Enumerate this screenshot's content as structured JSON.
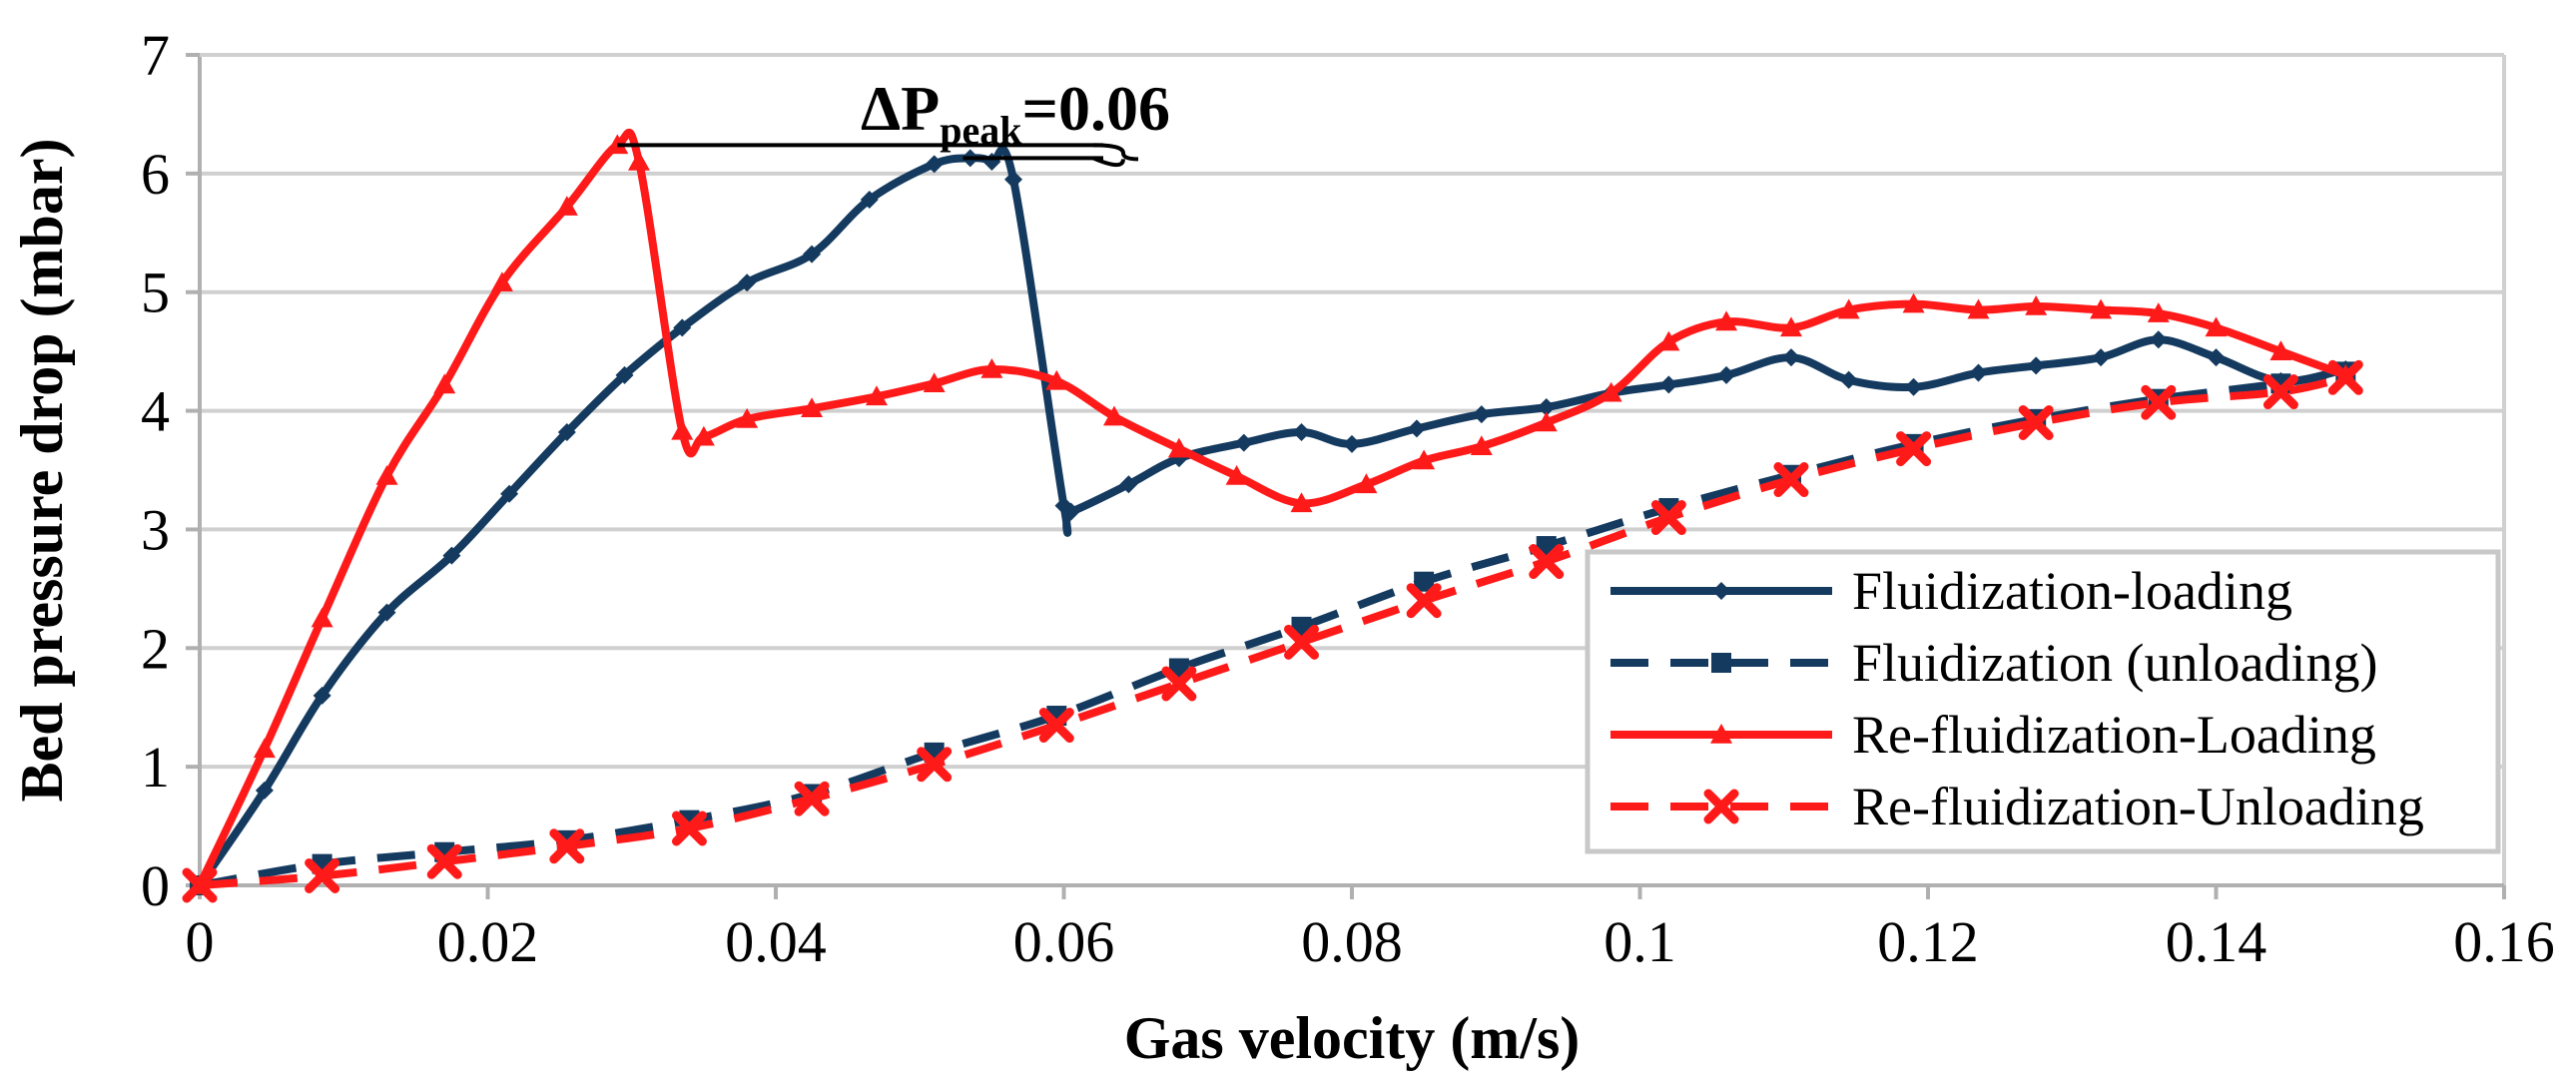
{
  "chart_data": {
    "type": "line",
    "title": "",
    "xlabel": "Gas velocity (m/s)",
    "ylabel": "Bed pressure drop (mbar)",
    "xlim": [
      0,
      0.16
    ],
    "ylim": [
      0,
      7
    ],
    "xticks": [
      "0",
      "0.02",
      "0.04",
      "0.06",
      "0.08",
      "0.1",
      "0.12",
      "0.14",
      "0.16"
    ],
    "yticks": [
      "0",
      "1",
      "2",
      "3",
      "4",
      "5",
      "6",
      "7"
    ],
    "grid": "horizontal",
    "legend_position": "bottom-right",
    "annotation": {
      "main": "ΔP",
      "sub": "peak",
      "value": "=0.06"
    },
    "colors": {
      "navy": "#143a5f",
      "red": "#ff1a1a",
      "grid": "#d0d0d0",
      "axis": "#b0b0b0"
    },
    "series": [
      {
        "name": "Fluidization-loading",
        "color": "#143a5f",
        "dash": "solid",
        "marker": "diamond",
        "x": [
          0,
          0.0045,
          0.0085,
          0.013,
          0.0175,
          0.0215,
          0.0255,
          0.0295,
          0.0335,
          0.038,
          0.0425,
          0.0465,
          0.051,
          0.0535,
          0.055,
          0.0565,
          0.06,
          0.0605,
          0.0645,
          0.068,
          0.0725,
          0.0765,
          0.08,
          0.0845,
          0.089,
          0.0935,
          0.098,
          0.102,
          0.106,
          0.1105,
          0.1145,
          0.119,
          0.1235,
          0.1275,
          0.132,
          0.136,
          0.14,
          0.1445,
          0.149
        ],
        "y": [
          0,
          0.8,
          1.6,
          2.3,
          2.78,
          3.3,
          3.82,
          4.3,
          4.7,
          5.08,
          5.32,
          5.78,
          6.08,
          6.13,
          6.1,
          5.95,
          3.2,
          3.15,
          3.38,
          3.6,
          3.73,
          3.82,
          3.72,
          3.85,
          3.97,
          4.03,
          4.15,
          4.22,
          4.3,
          4.45,
          4.26,
          4.2,
          4.32,
          4.38,
          4.45,
          4.6,
          4.45,
          4.25,
          4.35
        ]
      },
      {
        "name": "Fluidization (unloading)",
        "color": "#143a5f",
        "dash": "dashed",
        "marker": "square",
        "x": [
          0,
          0.0085,
          0.017,
          0.0255,
          0.034,
          0.0425,
          0.051,
          0.0595,
          0.068,
          0.0765,
          0.085,
          0.0935,
          0.102,
          0.1105,
          0.119,
          0.1275,
          0.136,
          0.1445,
          0.149
        ],
        "y": [
          0,
          0.18,
          0.28,
          0.38,
          0.55,
          0.77,
          1.12,
          1.43,
          1.83,
          2.18,
          2.56,
          2.86,
          3.18,
          3.46,
          3.72,
          3.93,
          4.1,
          4.23,
          4.33
        ]
      },
      {
        "name": "Re-fluidization-Loading",
        "color": "#ff1a1a",
        "dash": "solid",
        "marker": "triangle",
        "x": [
          0,
          0.0045,
          0.0085,
          0.013,
          0.017,
          0.021,
          0.0255,
          0.029,
          0.0305,
          0.0335,
          0.035,
          0.038,
          0.0425,
          0.047,
          0.051,
          0.055,
          0.0595,
          0.0635,
          0.068,
          0.072,
          0.0765,
          0.081,
          0.085,
          0.089,
          0.0935,
          0.098,
          0.102,
          0.106,
          0.1105,
          0.1145,
          0.119,
          0.1235,
          0.1275,
          0.132,
          0.136,
          0.14,
          0.1445,
          0.149
        ],
        "y": [
          0,
          1.15,
          2.25,
          3.45,
          4.22,
          5.08,
          5.72,
          6.24,
          6.1,
          3.83,
          3.78,
          3.93,
          4.02,
          4.12,
          4.23,
          4.35,
          4.25,
          3.95,
          3.68,
          3.45,
          3.22,
          3.38,
          3.58,
          3.7,
          3.9,
          4.15,
          4.58,
          4.75,
          4.7,
          4.85,
          4.9,
          4.85,
          4.88,
          4.85,
          4.82,
          4.7,
          4.5,
          4.3
        ]
      },
      {
        "name": "Re-fluidization-Unloading",
        "color": "#ff1a1a",
        "dash": "dashed",
        "marker": "x",
        "x": [
          0,
          0.0085,
          0.017,
          0.0255,
          0.034,
          0.0425,
          0.051,
          0.0595,
          0.068,
          0.0765,
          0.085,
          0.0935,
          0.102,
          0.1105,
          0.119,
          0.1275,
          0.136,
          0.1445,
          0.149
        ],
        "y": [
          0,
          0.08,
          0.2,
          0.33,
          0.48,
          0.73,
          1.02,
          1.35,
          1.7,
          2.05,
          2.4,
          2.73,
          3.1,
          3.42,
          3.68,
          3.9,
          4.07,
          4.16,
          4.28
        ]
      }
    ]
  }
}
